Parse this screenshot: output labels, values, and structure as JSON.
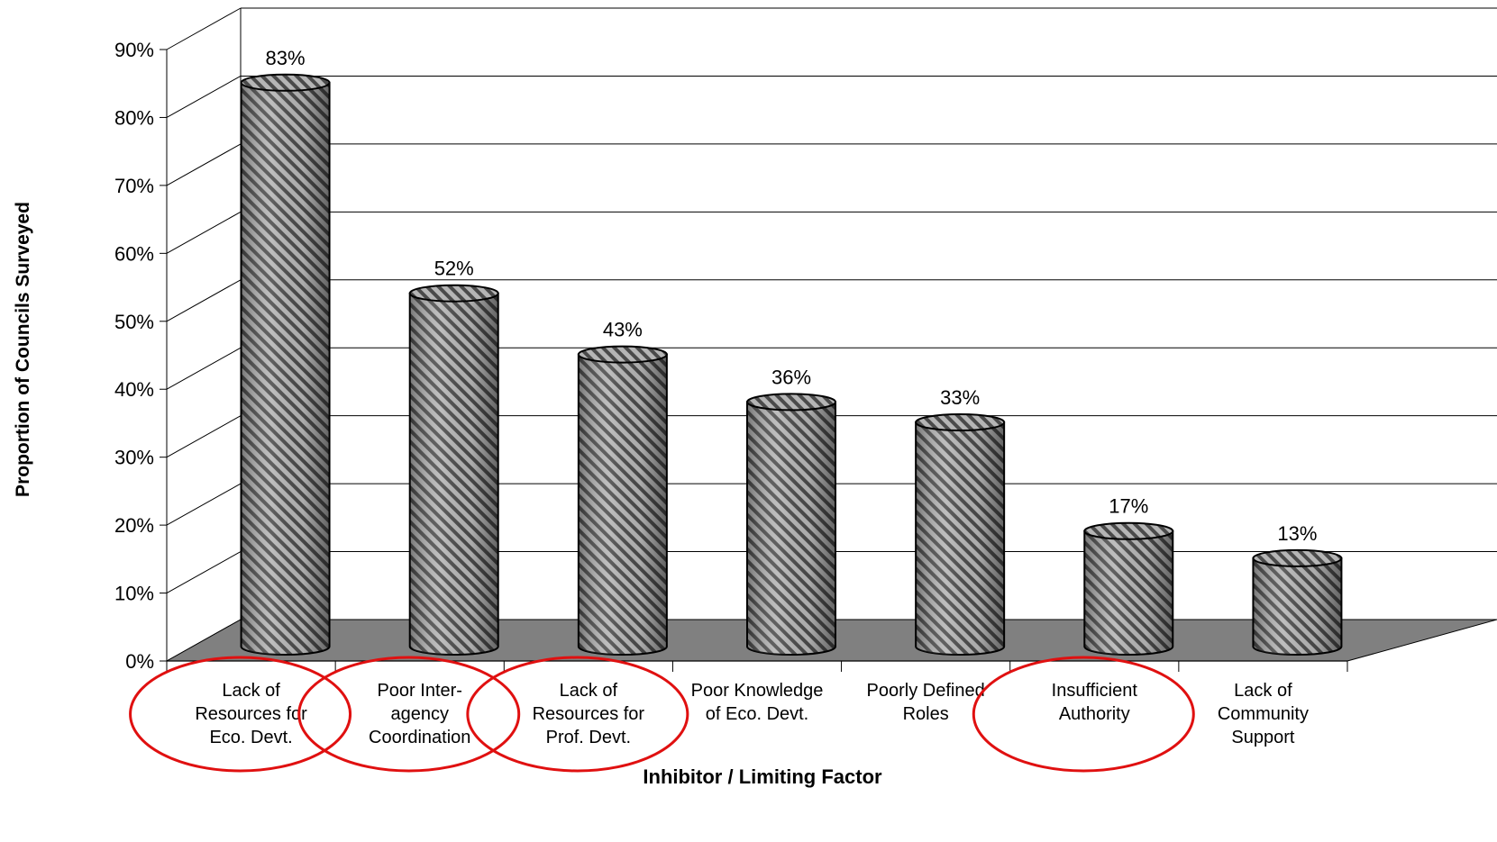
{
  "chart_data": {
    "type": "bar",
    "style": "3d-cylinder",
    "categories": [
      [
        "Lack of",
        "Resources for",
        "Eco. Devt."
      ],
      [
        "Poor Inter-",
        "agency",
        "Coordination"
      ],
      [
        "Lack of",
        "Resources for",
        "Prof. Devt."
      ],
      [
        "Poor Knowledge",
        "of Eco. Devt."
      ],
      [
        "Poorly Defined",
        "Roles"
      ],
      [
        "Insufficient",
        "Authority"
      ],
      [
        "Lack of",
        "Community",
        "Support"
      ]
    ],
    "values": [
      83,
      52,
      43,
      36,
      33,
      17,
      13
    ],
    "value_labels": [
      "83%",
      "52%",
      "43%",
      "36%",
      "33%",
      "17%",
      "13%"
    ],
    "xlabel": "Inhibitor / Limiting Factor",
    "ylabel": "Proportion of Councils Surveyed",
    "ylim": [
      0,
      90
    ],
    "yticks": [
      "0%",
      "10%",
      "20%",
      "30%",
      "40%",
      "50%",
      "60%",
      "70%",
      "80%",
      "90%"
    ],
    "grid": true,
    "highlighted_categories": [
      0,
      1,
      2,
      5
    ],
    "highlight_color": "#e01010",
    "bar_color": "#9a9a9a",
    "floor_color": "#808080"
  }
}
